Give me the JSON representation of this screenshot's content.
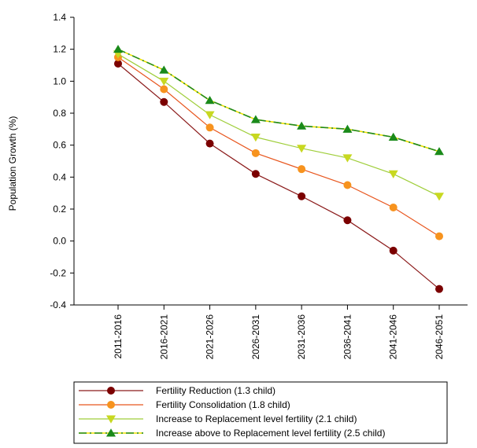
{
  "chart_data": {
    "type": "line",
    "title": "",
    "xlabel": "",
    "ylabel": "Population Growth (%)",
    "ylim": [
      -0.4,
      1.4
    ],
    "yticks": [
      "-0.4",
      "-0.2",
      "0.0",
      "0.2",
      "0.4",
      "0.6",
      "0.8",
      "1.0",
      "1.2",
      "1.4"
    ],
    "categories": [
      "2011-2016",
      "2016-2021",
      "2021-2026",
      "2026-2031",
      "2031-2036",
      "2036-2041",
      "2041-2046",
      "2046-2051"
    ],
    "grid": false,
    "legend_position": "bottom",
    "series": [
      {
        "name": "Fertility Reduction (1.3 child)",
        "values": [
          1.11,
          0.87,
          0.61,
          0.42,
          0.28,
          0.13,
          -0.06,
          -0.3
        ],
        "line_color": "#8b1a1a",
        "marker_color": "#7b0000",
        "marker": "circle",
        "dash": "solid"
      },
      {
        "name": "Fertility Consolidation (1.8 child)",
        "values": [
          1.15,
          0.95,
          0.71,
          0.55,
          0.45,
          0.35,
          0.21,
          0.03
        ],
        "line_color": "#e8561e",
        "marker_color": "#f7931e",
        "marker": "circle",
        "dash": "solid"
      },
      {
        "name": "Increase to Replacement level fertility (2.1 child)",
        "values": [
          1.17,
          1.0,
          0.79,
          0.65,
          0.58,
          0.52,
          0.42,
          0.28
        ],
        "line_color": "#9fce3a",
        "marker_color": "#c8d820",
        "marker": "triangle-down",
        "dash": "solid"
      },
      {
        "name": "Increase above to Replacement level fertility (2.5 child)",
        "values": [
          1.2,
          1.07,
          0.88,
          0.76,
          0.72,
          0.7,
          0.65,
          0.56
        ],
        "line_color": "#f0e000",
        "line_color_2": "#1f8a1f",
        "marker_color": "#1a8a1a",
        "marker": "triangle-up",
        "dash": "dash-dot"
      }
    ]
  }
}
